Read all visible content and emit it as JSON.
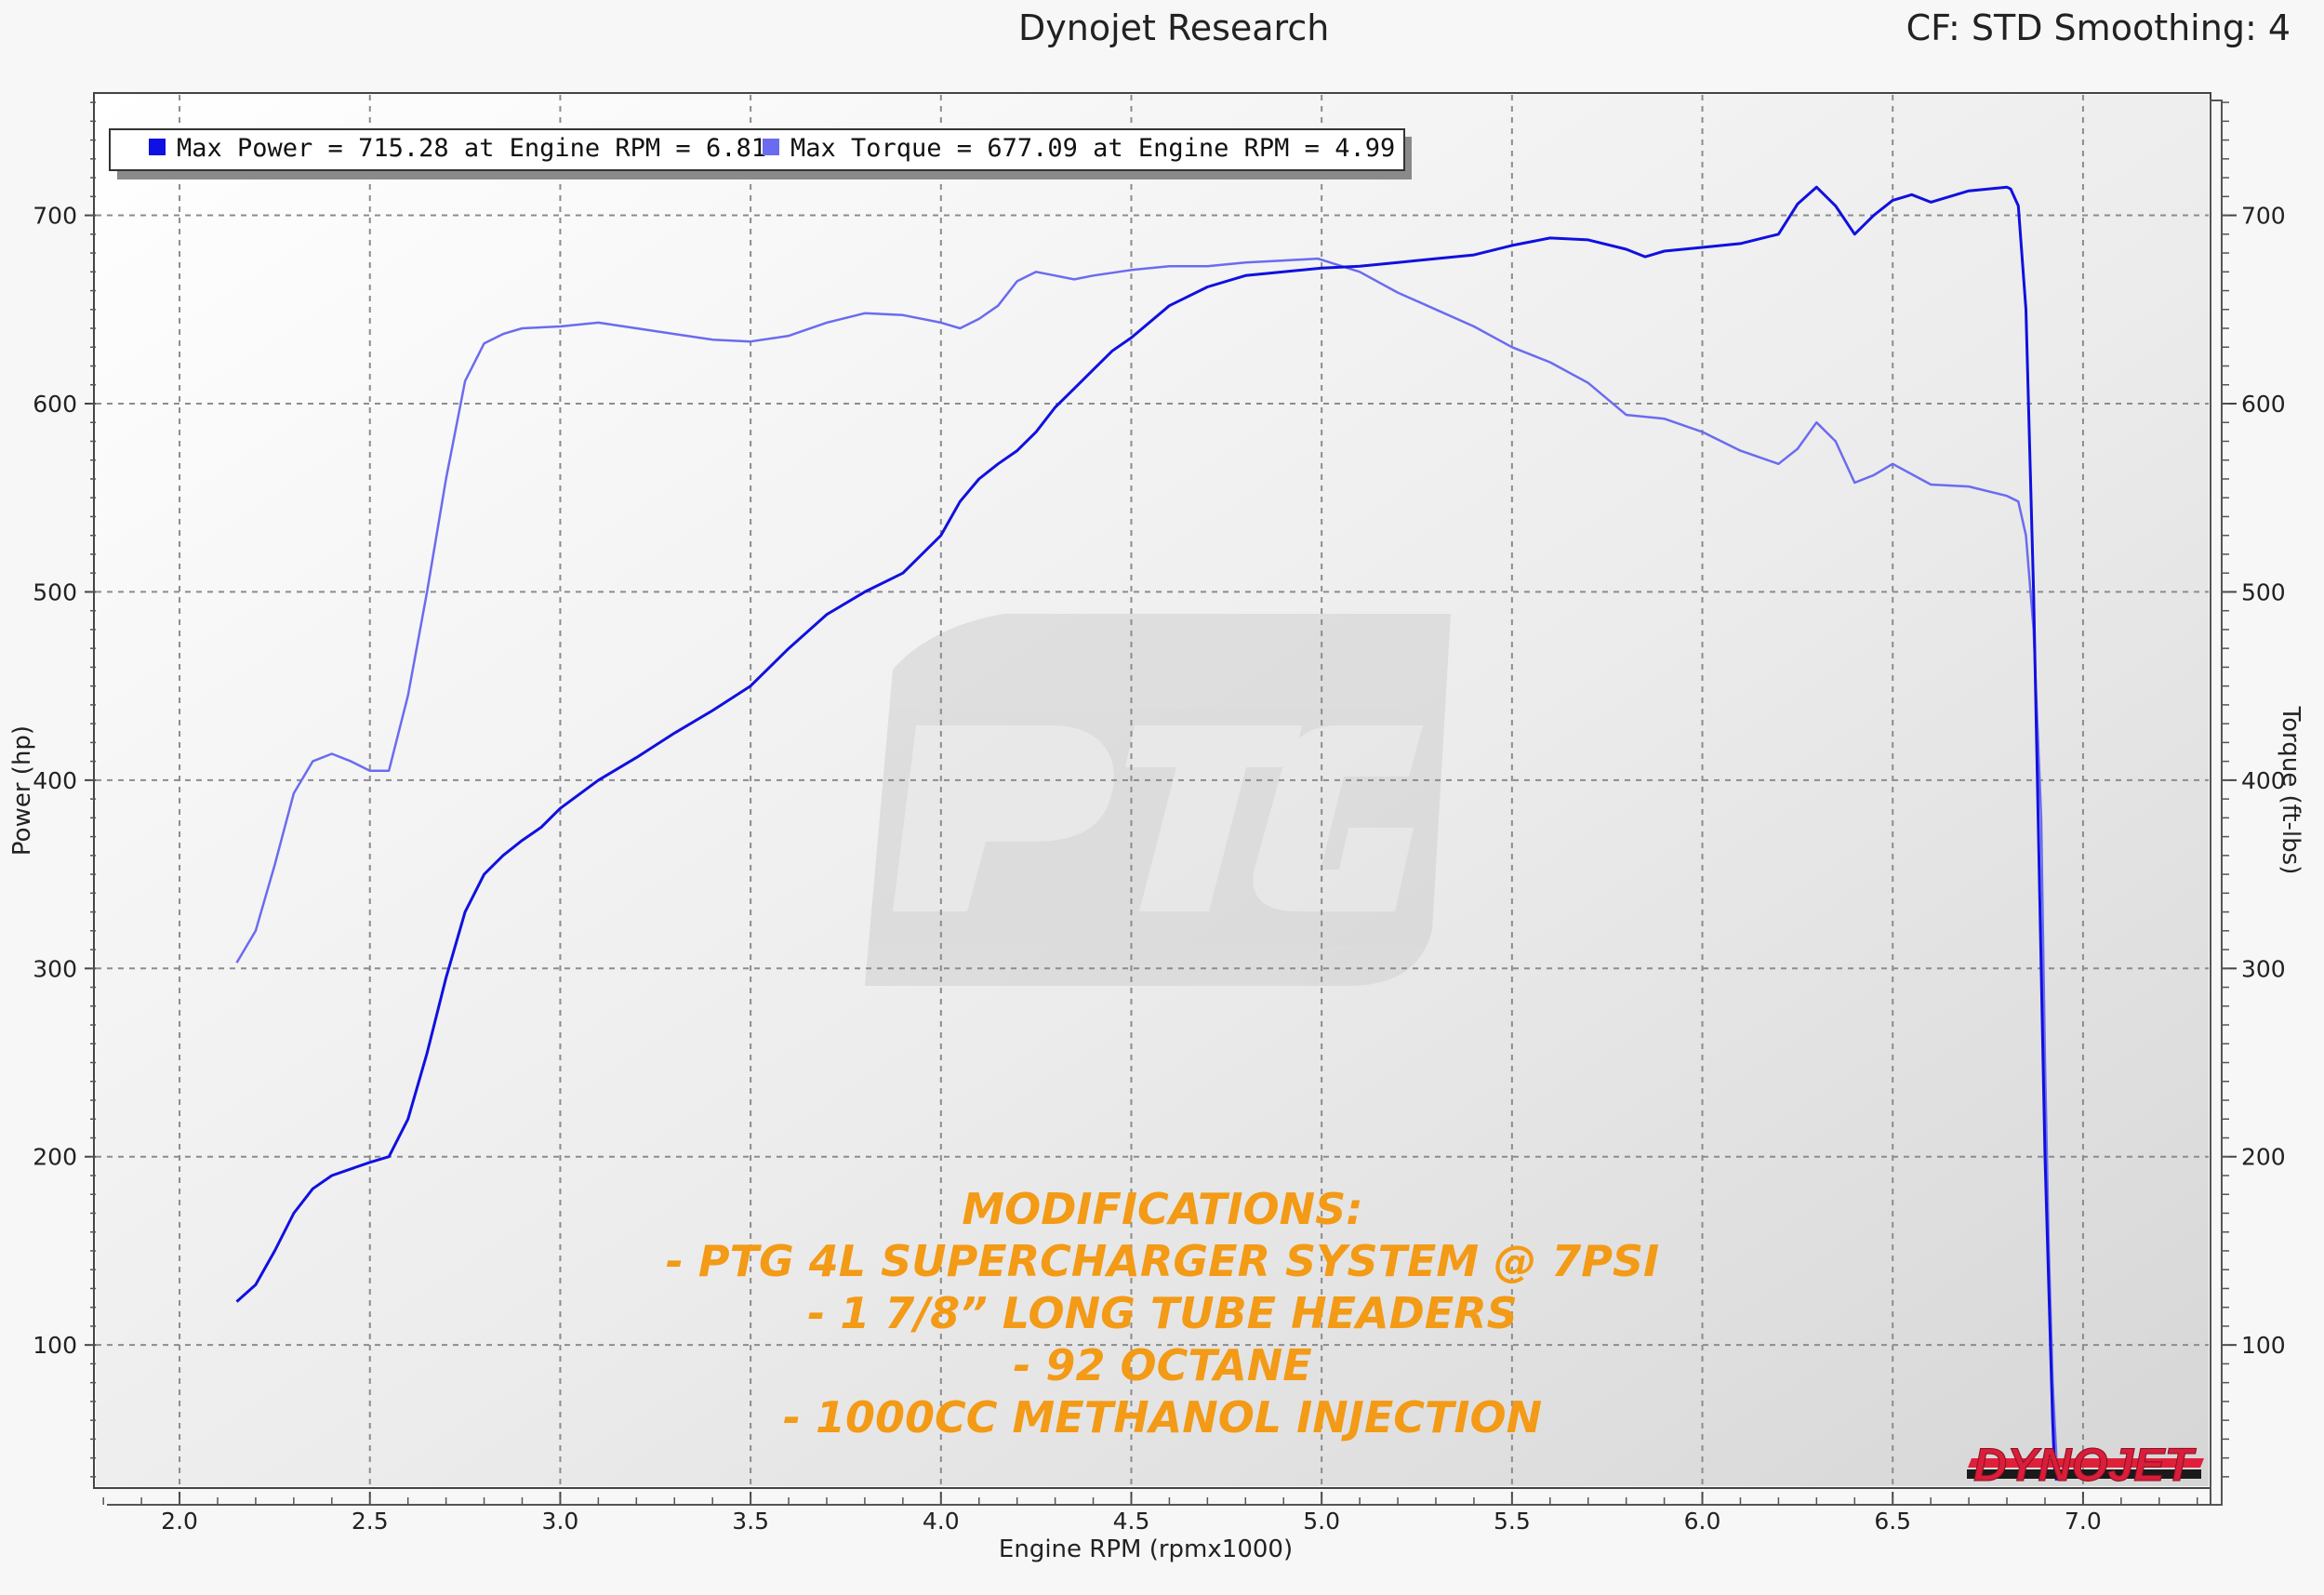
{
  "header": {
    "title": "Dynojet Research",
    "correction": "CF: STD Smoothing: 4"
  },
  "legend": {
    "power": "Max Power = 715.28 at Engine RPM = 6.81",
    "torque": "Max Torque = 677.09 at Engine RPM = 4.99"
  },
  "modifications": [
    "MODIFICATIONS:",
    "- PTG 4L SUPERCHARGER SYSTEM @ 7PSI",
    "- 1 7/8” LONG TUBE HEADERS",
    "- 92 OCTANE",
    "- 1000CC METHANOL INJECTION"
  ],
  "logos": {
    "watermark": "PTG",
    "dynojet": "DYNOJET"
  },
  "chart_data": {
    "type": "line",
    "xlabel": "Engine RPM (rpmx1000)",
    "ylabel": "Power (hp)",
    "y2label": "Torque (ft-lbs)",
    "xlim": [
      1.78,
      7.33
    ],
    "ylim": [
      25,
      764
    ],
    "y2lim": [
      25,
      764
    ],
    "xticks": [
      "2.0",
      "2.5",
      "3.0",
      "3.5",
      "4.0",
      "4.5",
      "5.0",
      "5.5",
      "6.0",
      "6.5",
      "7.0"
    ],
    "yticks": [
      "100",
      "200",
      "300",
      "400",
      "500",
      "600",
      "700"
    ],
    "grid": true,
    "legend_position": "top-left",
    "colors": {
      "power": "#1010e0",
      "torque": "#6b6bf0"
    },
    "series": [
      {
        "name": "Power",
        "axis": "left",
        "x": [
          2.15,
          2.2,
          2.25,
          2.3,
          2.35,
          2.4,
          2.5,
          2.55,
          2.6,
          2.65,
          2.7,
          2.75,
          2.8,
          2.85,
          2.9,
          2.95,
          3.0,
          3.1,
          3.2,
          3.3,
          3.4,
          3.5,
          3.6,
          3.7,
          3.8,
          3.9,
          4.0,
          4.05,
          4.1,
          4.15,
          4.2,
          4.25,
          4.3,
          4.35,
          4.4,
          4.45,
          4.5,
          4.6,
          4.7,
          4.8,
          4.9,
          5.0,
          5.1,
          5.2,
          5.3,
          5.4,
          5.5,
          5.6,
          5.7,
          5.8,
          5.85,
          5.9,
          6.0,
          6.1,
          6.2,
          6.25,
          6.3,
          6.35,
          6.4,
          6.45,
          6.5,
          6.55,
          6.6,
          6.65,
          6.7,
          6.75,
          6.8,
          6.81,
          6.83,
          6.85,
          6.87,
          6.89,
          6.9,
          6.91,
          6.92,
          6.925,
          6.93
        ],
        "values": [
          123,
          132,
          150,
          170,
          183,
          190,
          197,
          200,
          220,
          255,
          295,
          330,
          350,
          360,
          368,
          375,
          385,
          400,
          412,
          425,
          437,
          450,
          470,
          488,
          500,
          510,
          530,
          548,
          560,
          568,
          575,
          585,
          598,
          608,
          618,
          628,
          635,
          652,
          662,
          668,
          670,
          672,
          673,
          675,
          677,
          679,
          684,
          688,
          687,
          682,
          678,
          681,
          683,
          685,
          690,
          706,
          715,
          705,
          690,
          700,
          708,
          711,
          707,
          710,
          713,
          714,
          715,
          714,
          705,
          650,
          500,
          300,
          200,
          130,
          60,
          35,
          28
        ]
      },
      {
        "name": "Torque",
        "axis": "right",
        "x": [
          2.15,
          2.2,
          2.25,
          2.3,
          2.35,
          2.4,
          2.45,
          2.5,
          2.55,
          2.6,
          2.65,
          2.7,
          2.75,
          2.8,
          2.85,
          2.9,
          3.0,
          3.1,
          3.2,
          3.3,
          3.4,
          3.5,
          3.6,
          3.7,
          3.8,
          3.9,
          4.0,
          4.05,
          4.1,
          4.15,
          4.2,
          4.25,
          4.3,
          4.35,
          4.4,
          4.5,
          4.6,
          4.7,
          4.8,
          4.9,
          4.99,
          5.1,
          5.2,
          5.3,
          5.4,
          5.5,
          5.6,
          5.7,
          5.8,
          5.9,
          6.0,
          6.1,
          6.2,
          6.25,
          6.3,
          6.35,
          6.4,
          6.45,
          6.5,
          6.6,
          6.7,
          6.8,
          6.83,
          6.85,
          6.87,
          6.89,
          6.9,
          6.91,
          6.92,
          6.93
        ],
        "values": [
          303,
          320,
          355,
          393,
          410,
          414,
          410,
          405,
          405,
          445,
          500,
          560,
          612,
          632,
          637,
          640,
          641,
          643,
          640,
          637,
          634,
          633,
          636,
          643,
          648,
          647,
          643,
          640,
          645,
          652,
          665,
          670,
          668,
          666,
          668,
          671,
          673,
          673,
          675,
          676,
          677,
          670,
          659,
          650,
          641,
          630,
          622,
          611,
          594,
          592,
          585,
          575,
          568,
          576,
          590,
          580,
          558,
          562,
          568,
          557,
          556,
          551,
          548,
          530,
          480,
          380,
          250,
          150,
          80,
          40
        ]
      }
    ]
  }
}
